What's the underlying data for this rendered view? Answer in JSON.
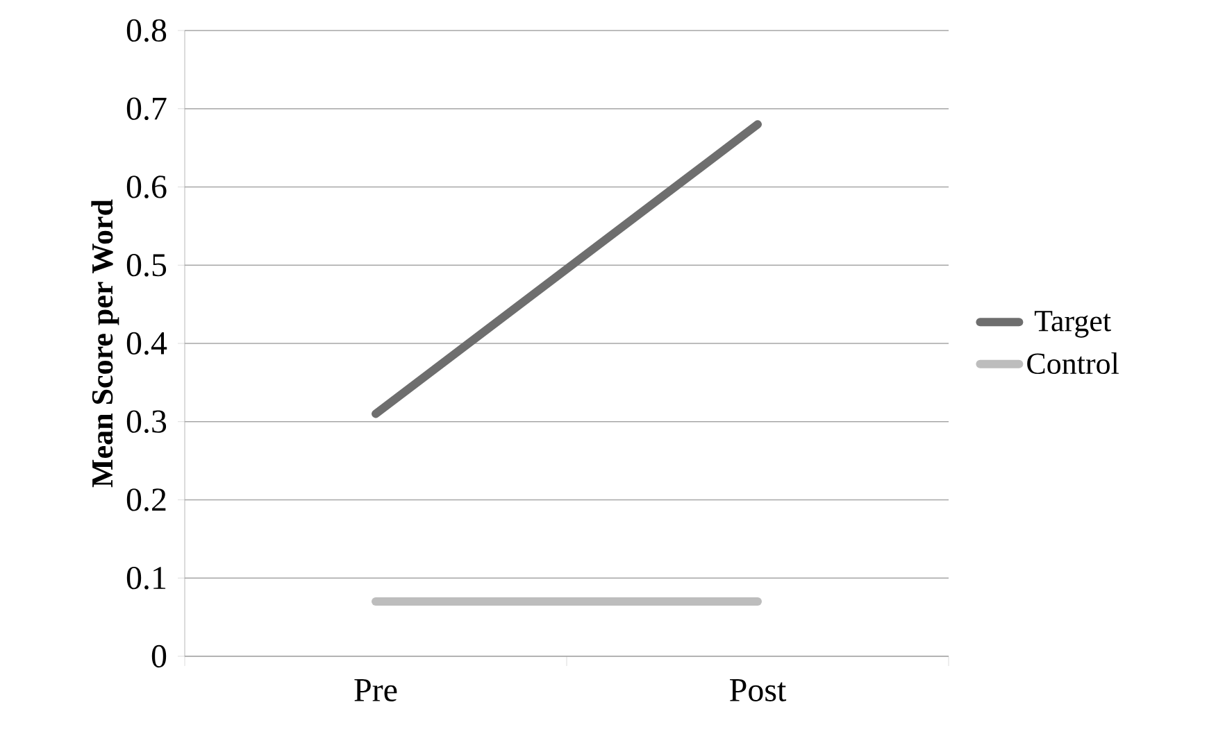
{
  "chart_data": {
    "type": "line",
    "ylabel": "Mean Score per Word",
    "categories": [
      "Pre",
      "Post"
    ],
    "series": [
      {
        "name": "Target",
        "color": "#6e6e6e",
        "values": [
          0.31,
          0.68
        ]
      },
      {
        "name": "Control",
        "color": "#bdbdbd",
        "values": [
          0.07,
          0.07
        ]
      }
    ],
    "ylim": [
      0,
      0.8
    ],
    "yticks": [
      0,
      0.1,
      0.2,
      0.3,
      0.4,
      0.5,
      0.6,
      0.7,
      0.8
    ],
    "grid": "y",
    "legend": "right",
    "marker": "none",
    "line_style": "solid"
  }
}
